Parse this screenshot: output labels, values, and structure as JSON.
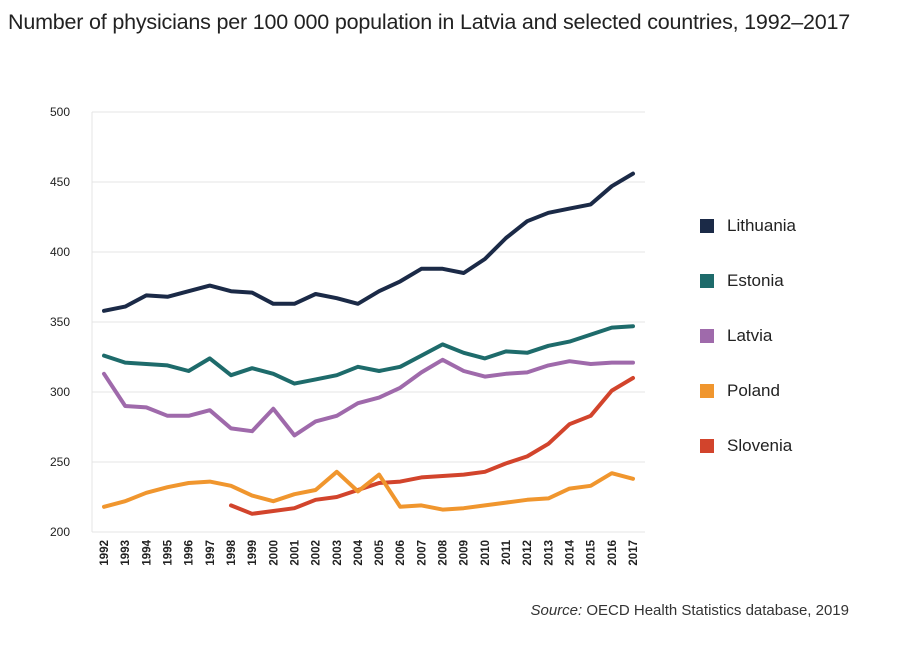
{
  "title": "Number of physicians per 100 000 population in Latvia and selected  countries, 1992–2017",
  "source": {
    "label": "Source:",
    "text": " OECD Health Statistics database, 2019"
  },
  "chart_data": {
    "type": "line",
    "x": [
      "1992",
      "1993",
      "1994",
      "1995",
      "1996",
      "1997",
      "1998",
      "1999",
      "2000",
      "2001",
      "2002",
      "2003",
      "2004",
      "2005",
      "2006",
      "2007",
      "2008",
      "2009",
      "2010",
      "2011",
      "2012",
      "2013",
      "2014",
      "2015",
      "2016",
      "2017"
    ],
    "ylim": [
      200,
      500
    ],
    "yticks": [
      200,
      250,
      300,
      350,
      400,
      450,
      500
    ],
    "grid": "horizontal",
    "legend_position": "right",
    "series": [
      {
        "name": "Lithuania",
        "color": "#1b2a47",
        "values": [
          358,
          361,
          369,
          368,
          372,
          376,
          372,
          371,
          363,
          363,
          370,
          367,
          363,
          372,
          379,
          388,
          388,
          385,
          395,
          410,
          422,
          428,
          431,
          434,
          447,
          456
        ]
      },
      {
        "name": "Estonia",
        "color": "#1e6b6b",
        "values": [
          326,
          321,
          320,
          319,
          315,
          324,
          312,
          317,
          313,
          306,
          309,
          312,
          318,
          315,
          318,
          326,
          334,
          328,
          324,
          329,
          328,
          333,
          336,
          341,
          346,
          347
        ]
      },
      {
        "name": "Latvia",
        "color": "#9f6aab",
        "values": [
          313,
          290,
          289,
          283,
          283,
          287,
          274,
          272,
          288,
          269,
          279,
          283,
          292,
          296,
          303,
          314,
          323,
          315,
          311,
          313,
          314,
          319,
          322,
          320,
          321,
          321
        ]
      },
      {
        "name": "Poland",
        "color": "#f0962e",
        "values": [
          218,
          222,
          228,
          232,
          235,
          236,
          233,
          226,
          222,
          227,
          230,
          243,
          229,
          241,
          218,
          219,
          216,
          217,
          219,
          221,
          223,
          224,
          231,
          233,
          242,
          238
        ]
      },
      {
        "name": "Slovenia",
        "color": "#d2442c",
        "values": [
          null,
          null,
          null,
          null,
          null,
          null,
          219,
          213,
          215,
          217,
          223,
          225,
          230,
          235,
          236,
          239,
          240,
          241,
          243,
          249,
          254,
          263,
          277,
          283,
          301,
          310
        ]
      }
    ]
  }
}
